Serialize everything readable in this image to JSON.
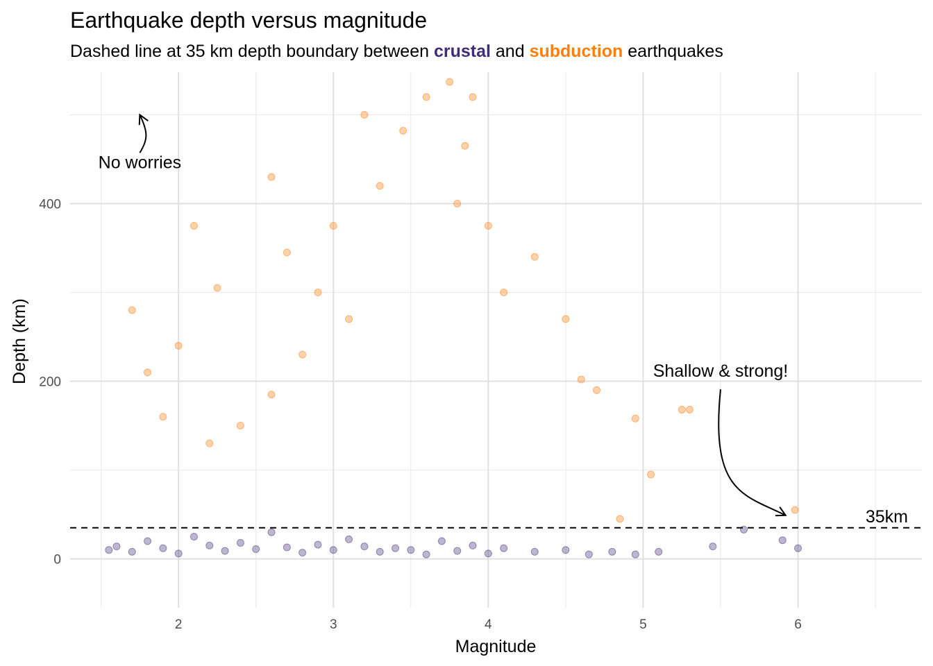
{
  "chart_data": {
    "type": "scatter",
    "title": "Earthquake depth versus magnitude",
    "subtitle": {
      "prefix": "Dashed line at 35 km depth boundary between ",
      "crustal_word": "crustal",
      "middle": " and ",
      "subduction_word": "subduction",
      "suffix": " earthquakes"
    },
    "xlabel": "Magnitude",
    "ylabel": "Depth (km)",
    "xlim": [
      1.3,
      6.8
    ],
    "ylim": [
      -55,
      548
    ],
    "x_ticks": [
      2,
      3,
      4,
      5,
      6
    ],
    "y_ticks": [
      0,
      200,
      400
    ],
    "grid": true,
    "colors": {
      "crustal": "#3f2d76",
      "subduction": "#ff7f0e"
    },
    "threshold": {
      "depth": 35,
      "label": "35km"
    },
    "series": [
      {
        "group": "crustal",
        "depth_range": [
          0,
          35
        ],
        "points": [
          [
            1.55,
            10
          ],
          [
            1.6,
            14
          ],
          [
            1.7,
            8
          ],
          [
            1.8,
            20
          ],
          [
            1.9,
            12
          ],
          [
            2.0,
            6
          ],
          [
            2.1,
            25
          ],
          [
            2.2,
            15
          ],
          [
            2.3,
            9
          ],
          [
            2.4,
            18
          ],
          [
            2.5,
            11
          ],
          [
            2.6,
            30
          ],
          [
            2.7,
            13
          ],
          [
            2.8,
            7
          ],
          [
            2.9,
            16
          ],
          [
            3.0,
            10
          ],
          [
            3.1,
            22
          ],
          [
            3.2,
            14
          ],
          [
            3.3,
            8
          ],
          [
            3.4,
            12
          ],
          [
            3.5,
            10
          ],
          [
            3.6,
            5
          ],
          [
            3.7,
            20
          ],
          [
            3.8,
            9
          ],
          [
            3.9,
            15
          ],
          [
            4.0,
            6
          ],
          [
            4.1,
            12
          ],
          [
            4.3,
            8
          ],
          [
            4.5,
            10
          ],
          [
            4.65,
            5
          ],
          [
            4.8,
            8
          ],
          [
            4.95,
            5
          ],
          [
            5.1,
            8
          ],
          [
            5.45,
            14
          ],
          [
            5.65,
            33
          ],
          [
            5.9,
            21
          ],
          [
            6.0,
            12
          ]
        ]
      },
      {
        "group": "subduction",
        "depth_range": [
          35,
          540
        ],
        "points": [
          [
            1.7,
            280
          ],
          [
            1.8,
            210
          ],
          [
            1.9,
            160
          ],
          [
            2.0,
            240
          ],
          [
            2.1,
            375
          ],
          [
            2.2,
            130
          ],
          [
            2.25,
            305
          ],
          [
            2.4,
            150
          ],
          [
            2.6,
            430
          ],
          [
            2.6,
            185
          ],
          [
            2.7,
            345
          ],
          [
            2.8,
            230
          ],
          [
            2.9,
            300
          ],
          [
            3.0,
            375
          ],
          [
            3.1,
            270
          ],
          [
            3.2,
            500
          ],
          [
            3.3,
            420
          ],
          [
            3.45,
            482
          ],
          [
            3.6,
            520
          ],
          [
            3.75,
            537
          ],
          [
            3.8,
            400
          ],
          [
            3.85,
            465
          ],
          [
            3.9,
            520
          ],
          [
            4.0,
            375
          ],
          [
            4.1,
            300
          ],
          [
            4.3,
            340
          ],
          [
            4.5,
            270
          ],
          [
            4.6,
            202
          ],
          [
            4.7,
            190
          ],
          [
            4.95,
            158
          ],
          [
            5.25,
            168
          ],
          [
            5.3,
            168
          ],
          [
            5.05,
            95
          ],
          [
            4.85,
            45
          ],
          [
            5.98,
            55
          ]
        ]
      }
    ],
    "annotations": [
      {
        "text": "No worries",
        "x": 1.75,
        "y": 440,
        "arrow_to": [
          1.75,
          500
        ]
      },
      {
        "text": "Shallow & strong!",
        "x": 5.5,
        "y": 205,
        "arrow_to": [
          5.92,
          49
        ]
      }
    ]
  }
}
